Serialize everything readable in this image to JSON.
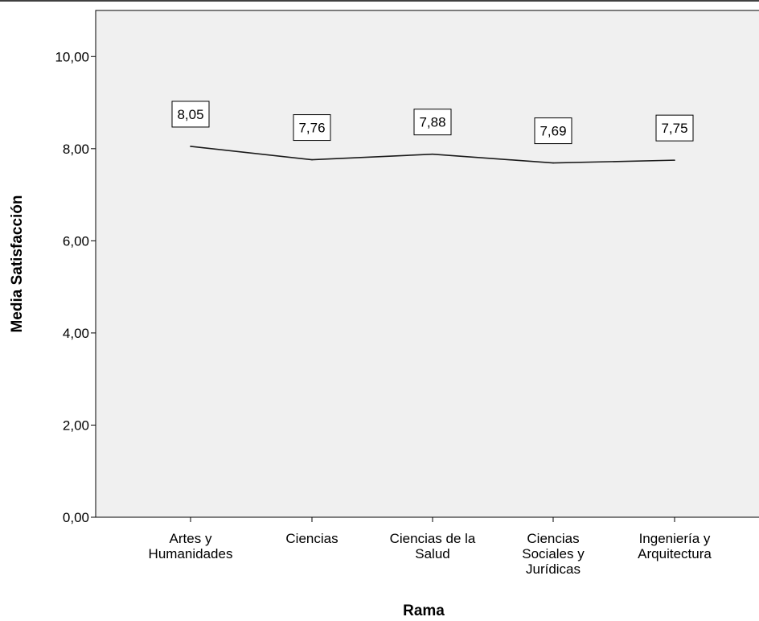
{
  "chart_data": {
    "type": "line",
    "title": "",
    "xlabel": "Rama",
    "ylabel": "Media Satisfacción",
    "ylim": [
      0,
      11
    ],
    "y_ticks": [
      "0,00",
      "2,00",
      "4,00",
      "6,00",
      "8,00",
      "10,00"
    ],
    "y_tick_values": [
      0,
      2,
      4,
      6,
      8,
      10
    ],
    "categories": [
      [
        "Artes y",
        "Humanidades"
      ],
      [
        "Ciencias"
      ],
      [
        "Ciencias de la",
        "Salud"
      ],
      [
        "Ciencias",
        "Sociales y",
        "Jurídicas"
      ],
      [
        "Ingeniería y",
        "Arquitectura"
      ]
    ],
    "values": [
      8.05,
      7.76,
      7.88,
      7.69,
      7.75
    ],
    "data_labels": [
      "8,05",
      "7,76",
      "7,88",
      "7,69",
      "7,75"
    ],
    "grid": false,
    "legend": "none",
    "colors": {
      "plot_background": "#f0f0f0",
      "line": "#1a1a1a",
      "axis": "#000000"
    }
  }
}
